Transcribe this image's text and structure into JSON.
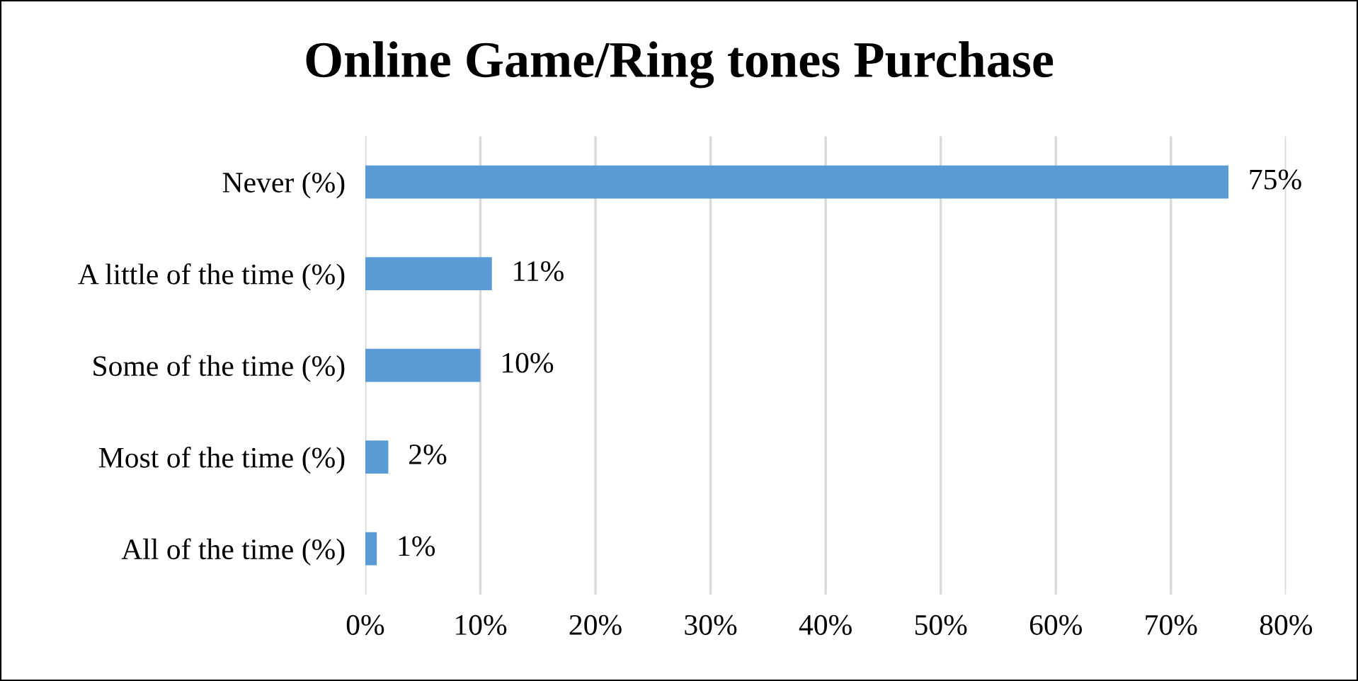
{
  "chart_data": {
    "type": "bar",
    "orientation": "horizontal",
    "title": "Online Game/Ring tones Purchase",
    "categories": [
      "Never (%)",
      "A little of the time (%)",
      "Some of the time (%)",
      "Most of the time (%)",
      "All of the time (%)"
    ],
    "values": [
      75,
      11,
      10,
      2,
      1
    ],
    "color": "#5b9bd5",
    "value_labels": [
      "75%",
      "11%",
      "10%",
      "2%",
      "1%"
    ],
    "xlim": [
      0,
      80
    ],
    "xticks": [
      {
        "value": 0,
        "label": "0%"
      },
      {
        "value": 10,
        "label": "10%"
      },
      {
        "value": 20,
        "label": "20%"
      },
      {
        "value": 30,
        "label": "30%"
      },
      {
        "value": 40,
        "label": "40%"
      },
      {
        "value": 50,
        "label": "50%"
      },
      {
        "value": 60,
        "label": "60%"
      },
      {
        "value": 70,
        "label": "70%"
      },
      {
        "value": 80,
        "label": "80%"
      }
    ],
    "grid": "x",
    "legend": false
  }
}
